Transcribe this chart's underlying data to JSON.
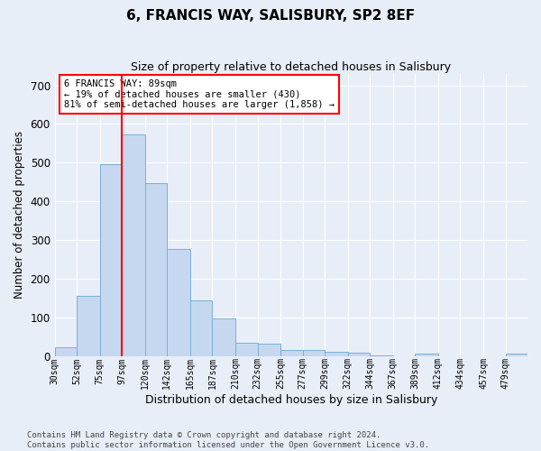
{
  "title": "6, FRANCIS WAY, SALISBURY, SP2 8EF",
  "subtitle": "Size of property relative to detached houses in Salisbury",
  "xlabel": "Distribution of detached houses by size in Salisbury",
  "ylabel": "Number of detached properties",
  "bar_color": "#c5d8f0",
  "bar_edge_color": "#7bafd4",
  "background_color": "#e8eef8",
  "annotation_text": "6 FRANCIS WAY: 89sqm\n← 19% of detached houses are smaller (430)\n81% of semi-detached houses are larger (1,858) →",
  "annotation_box_color": "white",
  "annotation_box_edge": "red",
  "vline_x": 97,
  "vline_color": "red",
  "footer": "Contains HM Land Registry data © Crown copyright and database right 2024.\nContains public sector information licensed under the Open Government Licence v3.0.",
  "categories": [
    "30sqm",
    "52sqm",
    "75sqm",
    "97sqm",
    "120sqm",
    "142sqm",
    "165sqm",
    "187sqm",
    "210sqm",
    "232sqm",
    "255sqm",
    "277sqm",
    "299sqm",
    "322sqm",
    "344sqm",
    "367sqm",
    "389sqm",
    "412sqm",
    "434sqm",
    "457sqm",
    "479sqm"
  ],
  "bin_edges": [
    30,
    52,
    75,
    97,
    120,
    142,
    165,
    187,
    210,
    232,
    255,
    277,
    299,
    322,
    344,
    367,
    389,
    412,
    434,
    457,
    479,
    501
  ],
  "values": [
    22,
    155,
    497,
    572,
    447,
    277,
    145,
    98,
    35,
    32,
    15,
    17,
    11,
    8,
    1,
    0,
    7,
    0,
    0,
    0,
    7
  ],
  "ylim": [
    0,
    730
  ],
  "yticks": [
    0,
    100,
    200,
    300,
    400,
    500,
    600,
    700
  ],
  "grid_color": "#ffffff",
  "title_fontsize": 11,
  "subtitle_fontsize": 9,
  "footer_fontsize": 6.5
}
